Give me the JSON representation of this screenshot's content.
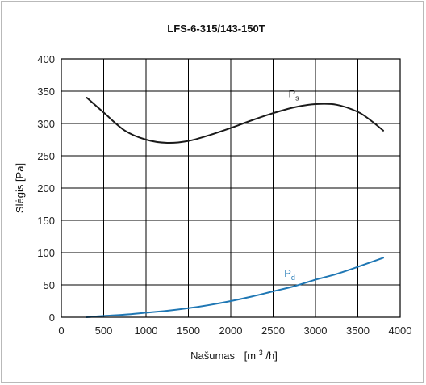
{
  "chart_data": {
    "type": "line",
    "title": "LFS-6-315/143-150T",
    "xlabel": "Našumas",
    "xunit_prefix": "[m",
    "xunit_sup": "3",
    "xunit_suffix": "/h]",
    "ylabel": "Slėgis  [Pa]",
    "xlim": [
      0,
      4000
    ],
    "ylim": [
      0,
      400
    ],
    "x_ticks": [
      0,
      500,
      1000,
      1500,
      2000,
      2500,
      3000,
      3500,
      4000
    ],
    "y_ticks": [
      0,
      50,
      100,
      150,
      200,
      250,
      300,
      350,
      400
    ],
    "grid": true,
    "series": [
      {
        "name": "P",
        "sub": "s",
        "color": "#1a1a1a",
        "x": [
          300,
          500,
          750,
          1000,
          1250,
          1500,
          1750,
          2000,
          2250,
          2500,
          2750,
          3000,
          3250,
          3500,
          3650,
          3800
        ],
        "y": [
          340,
          317,
          289,
          275,
          270,
          273,
          282,
          293,
          305,
          316,
          325,
          330,
          329,
          318,
          305,
          289
        ]
      },
      {
        "name": "P",
        "sub": "d",
        "color": "#1f77b4",
        "x": [
          300,
          500,
          750,
          1000,
          1250,
          1500,
          1750,
          2000,
          2250,
          2500,
          2750,
          3000,
          3250,
          3500,
          3800
        ],
        "y": [
          0,
          2,
          4,
          7,
          10,
          14,
          19,
          25,
          32,
          40,
          48,
          58,
          67,
          78,
          92
        ]
      }
    ]
  }
}
